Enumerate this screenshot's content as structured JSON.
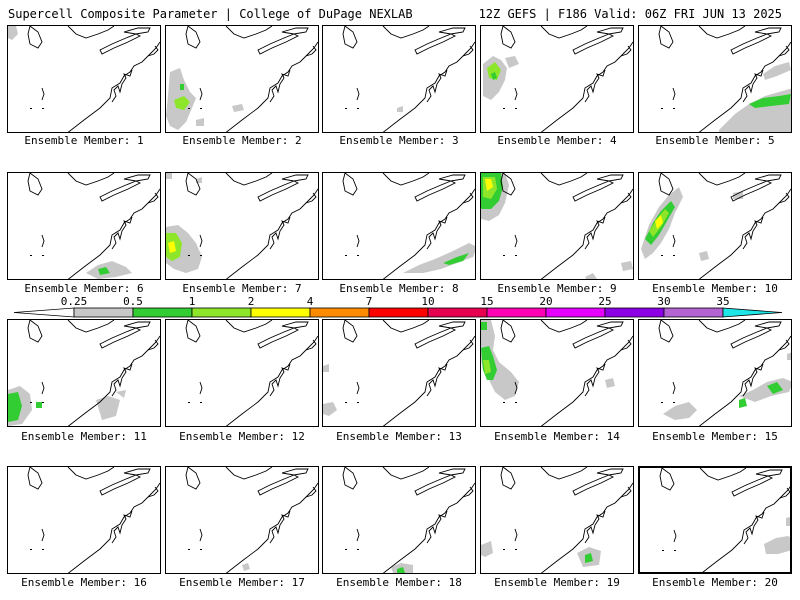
{
  "header": {
    "title": "Supercell Composite Parameter | College of DuPage NEXLAB",
    "valid": "12Z GEFS | F186 Valid: 06Z FRI JUN 13 2025"
  },
  "legend": {
    "ticks": [
      "0.25",
      "0.5",
      "1",
      "2",
      "4",
      "7",
      "10",
      "15",
      "20",
      "25",
      "30",
      "35"
    ],
    "colors": [
      "#c8c8c8",
      "#32cd32",
      "#8ee62b",
      "#ffff00",
      "#ff8c00",
      "#ff0000",
      "#e60050",
      "#ff00b4",
      "#e600ff",
      "#8c00e6",
      "#b464d2",
      "#1ee6e6"
    ]
  },
  "members": [
    {
      "label": "Ensemble Member: 1"
    },
    {
      "label": "Ensemble Member: 2"
    },
    {
      "label": "Ensemble Member: 3"
    },
    {
      "label": "Ensemble Member: 4"
    },
    {
      "label": "Ensemble Member: 5"
    },
    {
      "label": "Ensemble Member: 6"
    },
    {
      "label": "Ensemble Member: 7"
    },
    {
      "label": "Ensemble Member: 8"
    },
    {
      "label": "Ensemble Member: 9"
    },
    {
      "label": "Ensemble Member: 10"
    },
    {
      "label": "Ensemble Member: 11"
    },
    {
      "label": "Ensemble Member: 12"
    },
    {
      "label": "Ensemble Member: 13"
    },
    {
      "label": "Ensemble Member: 14"
    },
    {
      "label": "Ensemble Member: 15"
    },
    {
      "label": "Ensemble Member: 16"
    },
    {
      "label": "Ensemble Member: 17"
    },
    {
      "label": "Ensemble Member: 18"
    },
    {
      "label": "Ensemble Member: 19"
    },
    {
      "label": "Ensemble Member: 20",
      "selected": true
    }
  ]
}
